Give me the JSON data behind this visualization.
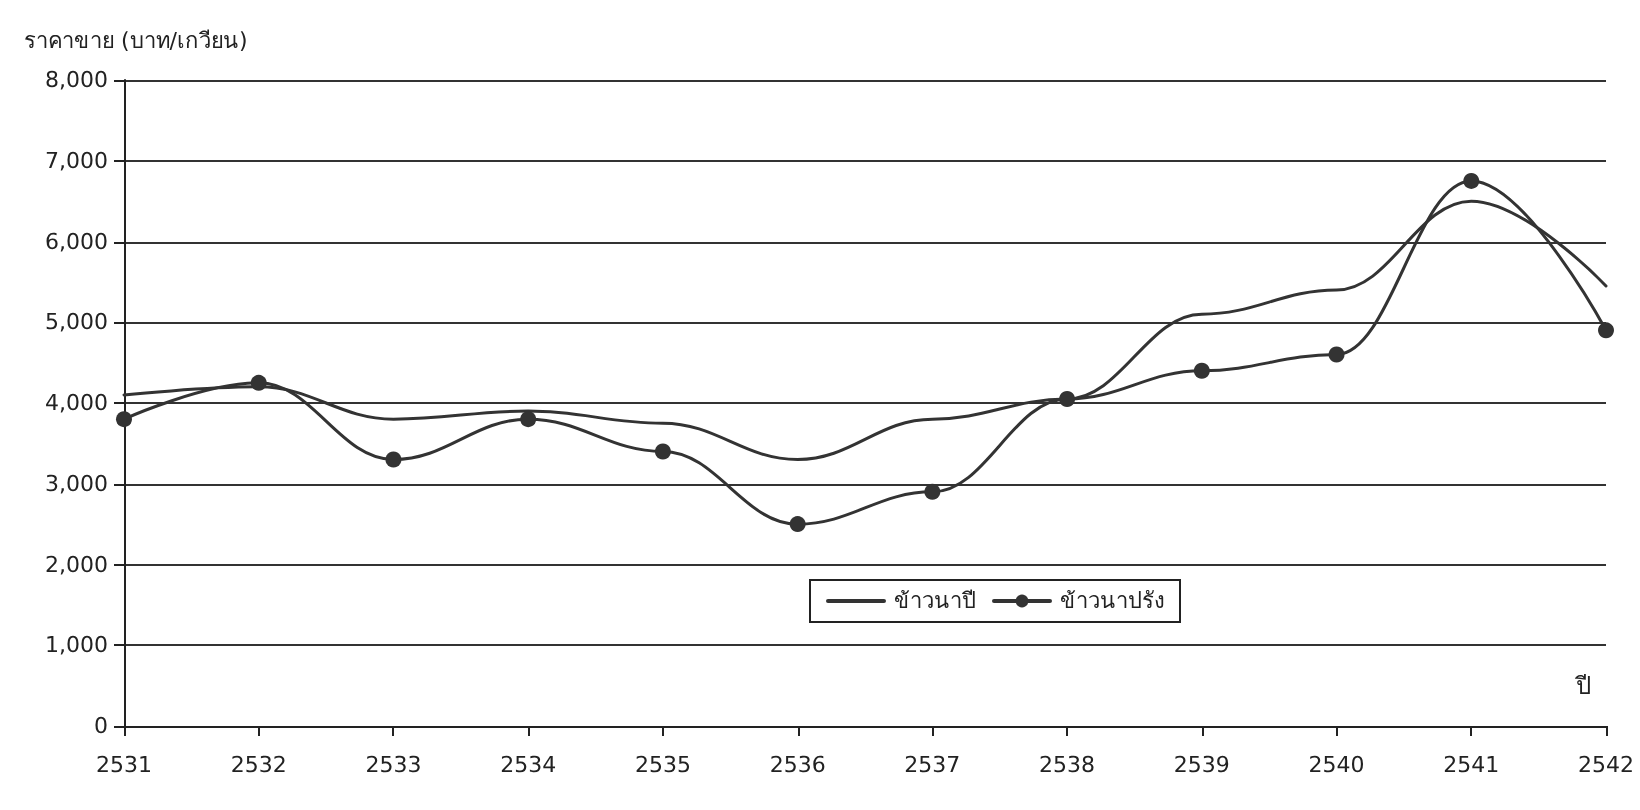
{
  "chart_data": {
    "type": "line",
    "ylabel": "ราคาขาย (บาท/เกวียน)",
    "xlabel": "ปี",
    "categories": [
      "2531",
      "2532",
      "2533",
      "2534",
      "2535",
      "2536",
      "2537",
      "2538",
      "2539",
      "2540",
      "2541",
      "2542"
    ],
    "series": [
      {
        "name": "ข้าวนาปี",
        "color": "#333333",
        "marker": "none",
        "values": [
          4100,
          4200,
          3800,
          3900,
          3750,
          3300,
          3800,
          4050,
          5100,
          5400,
          6500,
          5450
        ]
      },
      {
        "name": "ข้าวนาปรัง",
        "color": "#333333",
        "marker": "circle",
        "values": [
          3800,
          4250,
          3300,
          3800,
          3400,
          2500,
          2900,
          4050,
          4400,
          4600,
          6750,
          4900
        ]
      }
    ],
    "ylim": [
      0,
      8000
    ],
    "yticks": [
      {
        "value": 0,
        "label": "0"
      },
      {
        "value": 1000,
        "label": "1,000"
      },
      {
        "value": 2000,
        "label": "2,000"
      },
      {
        "value": 3000,
        "label": "3,000"
      },
      {
        "value": 4000,
        "label": "4,000"
      },
      {
        "value": 5000,
        "label": "5,000"
      },
      {
        "value": 6000,
        "label": "6,000"
      },
      {
        "value": 7000,
        "label": "7,000"
      },
      {
        "value": 8000,
        "label": "8,000"
      }
    ],
    "grid": "y",
    "legend": "bottom right",
    "line_style": "solid"
  }
}
